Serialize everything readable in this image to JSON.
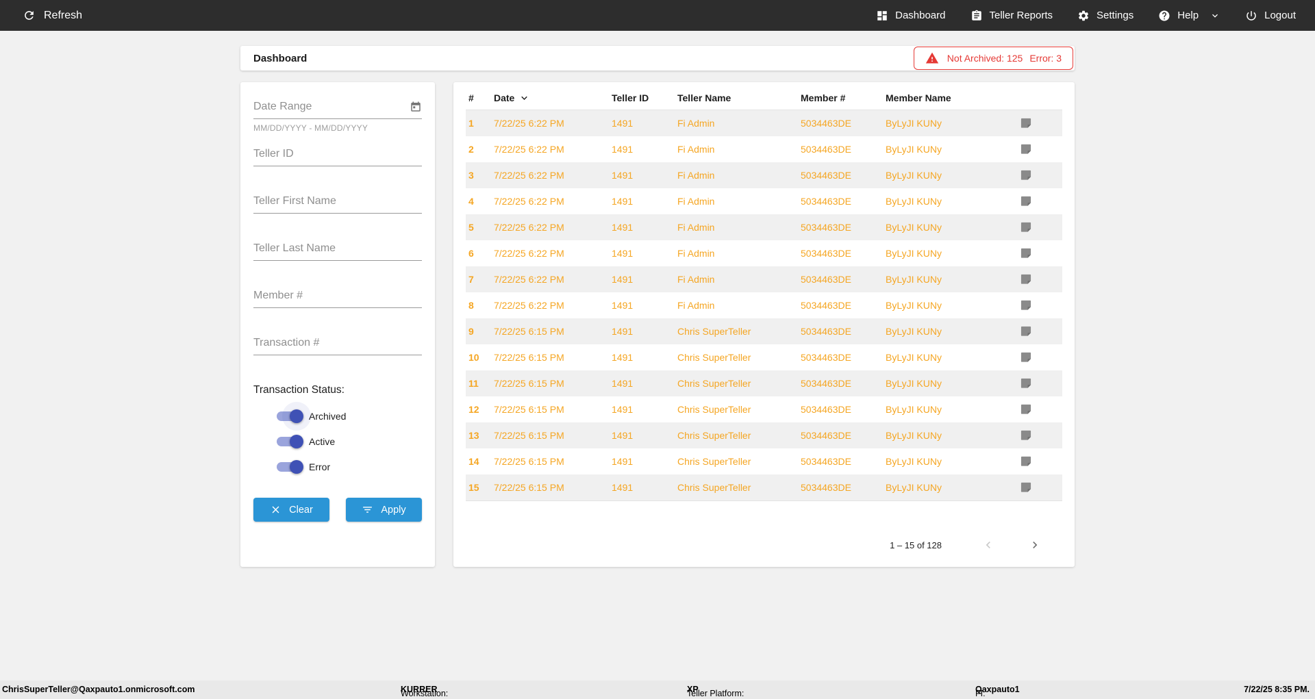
{
  "nav": {
    "refresh_label": "Refresh",
    "items": [
      {
        "label": "Dashboard",
        "icon": "dashboard-icon"
      },
      {
        "label": "Teller Reports",
        "icon": "reports-icon"
      },
      {
        "label": "Settings",
        "icon": "settings-icon"
      },
      {
        "label": "Help",
        "icon": "help-icon"
      },
      {
        "label": "Logout",
        "icon": "logout-icon"
      }
    ]
  },
  "header": {
    "title": "Dashboard",
    "alert": {
      "not_archived": "Not Archived: 125",
      "error": "Error: 3"
    }
  },
  "filters": {
    "date_range_label": "Date Range",
    "date_range_hint": "MM/DD/YYYY - MM/DD/YYYY",
    "fields": [
      "Teller ID",
      "Teller First Name",
      "Teller Last Name",
      "Member #",
      "Transaction #"
    ],
    "status_label": "Transaction Status:",
    "toggles": [
      {
        "label": "Archived",
        "on": true
      },
      {
        "label": "Active",
        "on": true
      },
      {
        "label": "Error",
        "on": true
      }
    ],
    "clear_label": "Clear",
    "apply_label": "Apply"
  },
  "table": {
    "columns": [
      "#",
      "Date",
      "Teller ID",
      "Teller Name",
      "Member #",
      "Member Name"
    ],
    "sorted_column": "Date",
    "sort_direction": "desc",
    "rows": [
      {
        "num": "1",
        "date": "7/22/25 6:22 PM",
        "teller_id": "1491",
        "teller_name": "Fi Admin",
        "member_num": "5034463DE",
        "member_name": "ByLyJI KUNy"
      },
      {
        "num": "2",
        "date": "7/22/25 6:22 PM",
        "teller_id": "1491",
        "teller_name": "Fi Admin",
        "member_num": "5034463DE",
        "member_name": "ByLyJI KUNy"
      },
      {
        "num": "3",
        "date": "7/22/25 6:22 PM",
        "teller_id": "1491",
        "teller_name": "Fi Admin",
        "member_num": "5034463DE",
        "member_name": "ByLyJI KUNy"
      },
      {
        "num": "4",
        "date": "7/22/25 6:22 PM",
        "teller_id": "1491",
        "teller_name": "Fi Admin",
        "member_num": "5034463DE",
        "member_name": "ByLyJI KUNy"
      },
      {
        "num": "5",
        "date": "7/22/25 6:22 PM",
        "teller_id": "1491",
        "teller_name": "Fi Admin",
        "member_num": "5034463DE",
        "member_name": "ByLyJI KUNy"
      },
      {
        "num": "6",
        "date": "7/22/25 6:22 PM",
        "teller_id": "1491",
        "teller_name": "Fi Admin",
        "member_num": "5034463DE",
        "member_name": "ByLyJI KUNy"
      },
      {
        "num": "7",
        "date": "7/22/25 6:22 PM",
        "teller_id": "1491",
        "teller_name": "Fi Admin",
        "member_num": "5034463DE",
        "member_name": "ByLyJI KUNy"
      },
      {
        "num": "8",
        "date": "7/22/25 6:22 PM",
        "teller_id": "1491",
        "teller_name": "Fi Admin",
        "member_num": "5034463DE",
        "member_name": "ByLyJI KUNy"
      },
      {
        "num": "9",
        "date": "7/22/25 6:15 PM",
        "teller_id": "1491",
        "teller_name": "Chris SuperTeller",
        "member_num": "5034463DE",
        "member_name": "ByLyJI KUNy"
      },
      {
        "num": "10",
        "date": "7/22/25 6:15 PM",
        "teller_id": "1491",
        "teller_name": "Chris SuperTeller",
        "member_num": "5034463DE",
        "member_name": "ByLyJI KUNy"
      },
      {
        "num": "11",
        "date": "7/22/25 6:15 PM",
        "teller_id": "1491",
        "teller_name": "Chris SuperTeller",
        "member_num": "5034463DE",
        "member_name": "ByLyJI KUNy"
      },
      {
        "num": "12",
        "date": "7/22/25 6:15 PM",
        "teller_id": "1491",
        "teller_name": "Chris SuperTeller",
        "member_num": "5034463DE",
        "member_name": "ByLyJI KUNy"
      },
      {
        "num": "13",
        "date": "7/22/25 6:15 PM",
        "teller_id": "1491",
        "teller_name": "Chris SuperTeller",
        "member_num": "5034463DE",
        "member_name": "ByLyJI KUNy"
      },
      {
        "num": "14",
        "date": "7/22/25 6:15 PM",
        "teller_id": "1491",
        "teller_name": "Chris SuperTeller",
        "member_num": "5034463DE",
        "member_name": "ByLyJI KUNy"
      },
      {
        "num": "15",
        "date": "7/22/25 6:15 PM",
        "teller_id": "1491",
        "teller_name": "Chris SuperTeller",
        "member_num": "5034463DE",
        "member_name": "ByLyJI KUNy"
      }
    ],
    "pagination": {
      "range": "1 – 15 of 128"
    }
  },
  "footer": {
    "user": "ChrisSuperTeller@Qaxpauto1.onmicrosoft.com",
    "workstation_label": "Workstation: ",
    "workstation": "KURRER",
    "platform_label": "Teller Platform: ",
    "platform": "XP",
    "fi_label": "FI: ",
    "fi": "Qaxpauto1",
    "datetime": "7/22/25 8:35 PM."
  },
  "colors": {
    "nav_bg": "#2d2d2d",
    "accent_orange": "#f5a623",
    "alert_red": "#e53935",
    "button_blue": "#2b95d6",
    "toggle_indigo": "#3f51b5",
    "toggle_track": "#9aa4dc"
  }
}
